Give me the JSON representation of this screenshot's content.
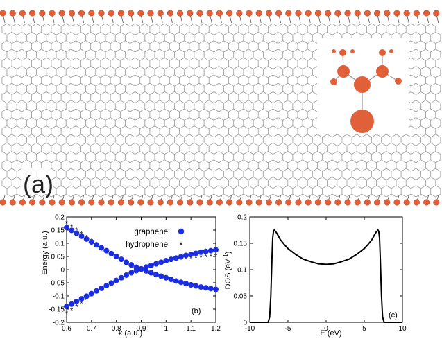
{
  "panel_a": {
    "label": "(a)",
    "atom_color": "#e0603a",
    "bond_color": "#555555",
    "lattice_color": "#9a9a9a"
  },
  "chart_data": [
    {
      "type": "scatter",
      "panel_label": "(b)",
      "title": "",
      "xlabel": "k (a.u.)",
      "ylabel": "Energy (a.u.)",
      "xlim": [
        0.6,
        1.2
      ],
      "ylim": [
        -0.2,
        0.2
      ],
      "xticks": [
        0.6,
        0.7,
        0.8,
        0.9,
        1.0,
        1.1,
        1.2
      ],
      "xtick_labels": [
        "0.6",
        "0.7",
        "0.8",
        "0.9",
        "1",
        "1.1",
        "1.2"
      ],
      "yticks": [
        -0.2,
        -0.15,
        -0.1,
        -0.05,
        0,
        0.05,
        0.1,
        0.15,
        0.2
      ],
      "ytick_labels": [
        "-0.2",
        "-0.15",
        "-0.1",
        "-0.05",
        "0",
        "0.05",
        "0.1",
        "0.15",
        "0.2"
      ],
      "legend_position": "top-right",
      "series": [
        {
          "name": "graphene",
          "marker": "circle",
          "color": "#1a2ee0",
          "bands": [
            {
              "x": [
                0.6,
                0.62,
                0.64,
                0.66,
                0.68,
                0.7,
                0.72,
                0.74,
                0.76,
                0.78,
                0.8,
                0.82,
                0.84,
                0.86,
                0.88,
                0.9,
                0.92,
                0.94,
                0.96,
                0.98,
                1.0,
                1.02,
                1.04,
                1.06,
                1.08,
                1.1,
                1.12,
                1.14,
                1.16,
                1.18,
                1.2
              ],
              "y": [
                0.16,
                0.149,
                0.138,
                0.127,
                0.116,
                0.105,
                0.094,
                0.083,
                0.072,
                0.061,
                0.05,
                0.039,
                0.028,
                0.018,
                0.009,
                0.002,
                -0.005,
                -0.012,
                -0.019,
                -0.025,
                -0.031,
                -0.037,
                -0.043,
                -0.048,
                -0.053,
                -0.058,
                -0.062,
                -0.066,
                -0.069,
                -0.072,
                -0.075
              ]
            },
            {
              "x": [
                0.6,
                0.62,
                0.64,
                0.66,
                0.68,
                0.7,
                0.72,
                0.74,
                0.76,
                0.78,
                0.8,
                0.82,
                0.84,
                0.86,
                0.88,
                0.9,
                0.92,
                0.94,
                0.96,
                0.98,
                1.0,
                1.02,
                1.04,
                1.06,
                1.08,
                1.1,
                1.12,
                1.14,
                1.16,
                1.18,
                1.2
              ],
              "y": [
                -0.14,
                -0.131,
                -0.121,
                -0.111,
                -0.101,
                -0.091,
                -0.081,
                -0.071,
                -0.061,
                -0.051,
                -0.041,
                -0.031,
                -0.021,
                -0.012,
                -0.004,
                0.003,
                0.01,
                0.016,
                0.022,
                0.028,
                0.034,
                0.039,
                0.044,
                0.049,
                0.054,
                0.058,
                0.062,
                0.066,
                0.069,
                0.072,
                0.075
              ]
            }
          ]
        },
        {
          "name": "hydrophene",
          "marker": "star",
          "color": "#111111",
          "bands": [
            {
              "x": [
                0.6,
                0.62,
                0.64,
                0.66,
                0.68,
                0.7,
                0.72,
                0.74,
                0.76,
                0.78,
                0.8,
                0.82,
                0.84,
                0.86,
                0.88,
                0.9,
                0.92,
                0.94,
                0.96,
                0.98,
                1.0,
                1.02,
                1.04,
                1.06,
                1.08,
                1.1,
                1.12,
                1.14,
                1.16,
                1.18,
                1.2
              ],
              "y": [
                0.178,
                0.164,
                0.151,
                0.137,
                0.124,
                0.111,
                0.098,
                0.086,
                0.074,
                0.062,
                0.05,
                0.039,
                0.028,
                0.018,
                0.008,
                0.0,
                -0.008,
                -0.016,
                -0.023,
                -0.03,
                -0.036,
                -0.042,
                -0.048,
                -0.053,
                -0.058,
                -0.062,
                -0.066,
                -0.07,
                -0.073,
                -0.076,
                -0.078
              ]
            },
            {
              "x": [
                0.6,
                0.62,
                0.64,
                0.66,
                0.68,
                0.7,
                0.72,
                0.74,
                0.76,
                0.78,
                0.8,
                0.82,
                0.84,
                0.86,
                0.88,
                0.9,
                0.92,
                0.94,
                0.96,
                0.98,
                1.0,
                1.02,
                1.04,
                1.06,
                1.08,
                1.1,
                1.12,
                1.14,
                1.16,
                1.18,
                1.2
              ],
              "y": [
                -0.165,
                -0.152,
                -0.139,
                -0.126,
                -0.113,
                -0.1,
                -0.088,
                -0.076,
                -0.064,
                -0.052,
                -0.041,
                -0.03,
                -0.02,
                -0.011,
                -0.003,
                0.004,
                0.01,
                0.016,
                0.021,
                0.026,
                0.03,
                0.034,
                0.037,
                0.04,
                0.043,
                0.045,
                0.047,
                0.049,
                0.05,
                0.051,
                0.052
              ]
            }
          ]
        }
      ]
    },
    {
      "type": "line",
      "panel_label": "(c)",
      "title": "",
      "xlabel": "E (eV)",
      "ylabel_main": "DOS (eV",
      "ylabel_sup": "-1",
      "ylabel_end": ")",
      "xlim": [
        -10,
        10
      ],
      "ylim": [
        0,
        0.2
      ],
      "xticks": [
        -10,
        -5,
        0,
        5,
        10
      ],
      "xtick_labels": [
        "-10",
        "-5",
        "0",
        "5",
        "10"
      ],
      "yticks": [
        0,
        0.05,
        0.1,
        0.15,
        0.2
      ],
      "ytick_labels": [
        "0",
        "0.05",
        "0.1",
        "0.15",
        "0.2"
      ],
      "series": [
        {
          "color": "#000000",
          "x": [
            -10,
            -8,
            -7.6,
            -7.4,
            -7.25,
            -7.1,
            -7.0,
            -6.9,
            -6.8,
            -6.6,
            -6.3,
            -6,
            -5.5,
            -5,
            -4,
            -3,
            -2,
            -1,
            0,
            1,
            2,
            3,
            4,
            5,
            5.5,
            6,
            6.3,
            6.6,
            6.8,
            6.9,
            7.0,
            7.1,
            7.25,
            7.4,
            7.6,
            8,
            10
          ],
          "y": [
            0,
            0,
            0,
            0.01,
            0.05,
            0.12,
            0.16,
            0.172,
            0.175,
            0.172,
            0.165,
            0.157,
            0.148,
            0.14,
            0.129,
            0.12,
            0.115,
            0.111,
            0.11,
            0.111,
            0.115,
            0.12,
            0.129,
            0.14,
            0.148,
            0.157,
            0.165,
            0.172,
            0.175,
            0.172,
            0.16,
            0.12,
            0.05,
            0.01,
            0,
            0,
            0
          ]
        }
      ]
    }
  ]
}
